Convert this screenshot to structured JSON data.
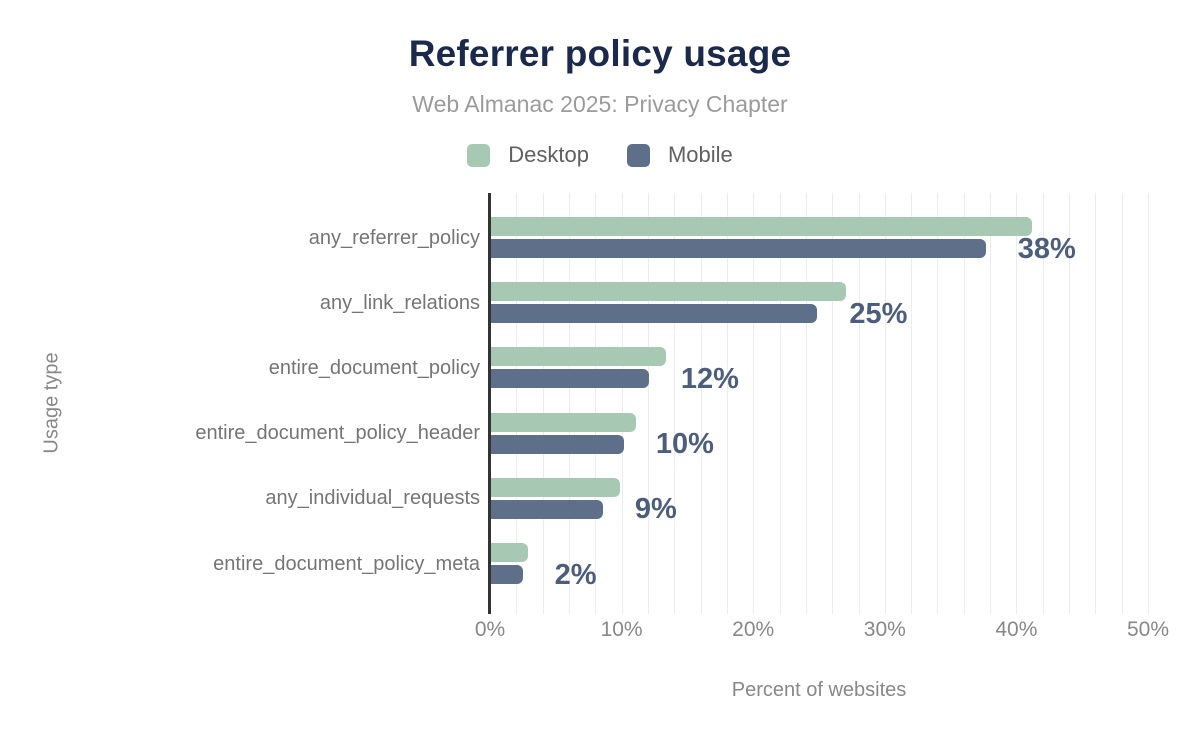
{
  "chart_data": {
    "type": "bar",
    "orientation": "horizontal",
    "title": "Referrer policy usage",
    "subtitle": "Web Almanac 2025: Privacy Chapter",
    "xlabel": "Percent of websites",
    "ylabel": "Usage type",
    "categories": [
      "any_referrer_policy",
      "any_link_relations",
      "entire_document_policy",
      "entire_document_policy_header",
      "any_individual_requests",
      "entire_document_policy_meta"
    ],
    "series": [
      {
        "name": "Desktop",
        "color": "#a7c9b4",
        "values": [
          41.1,
          27.0,
          13.3,
          11.0,
          9.8,
          2.8
        ]
      },
      {
        "name": "Mobile",
        "color": "#5e7089",
        "values": [
          37.6,
          24.8,
          12.0,
          10.1,
          8.5,
          2.4
        ]
      }
    ],
    "value_labels": [
      "38%",
      "25%",
      "12%",
      "10%",
      "9%",
      "2%"
    ],
    "xlim": [
      0,
      51.5
    ],
    "xticks": [
      {
        "value": 0,
        "label": "0%"
      },
      {
        "value": 10,
        "label": "10%"
      },
      {
        "value": 20,
        "label": "20%"
      },
      {
        "value": 30,
        "label": "30%"
      },
      {
        "value": 40,
        "label": "40%"
      },
      {
        "value": 50,
        "label": "50%"
      }
    ],
    "grid": {
      "minor_step_pct": 2,
      "color": "#ececef"
    },
    "legend_position": "top-center",
    "colors": {
      "title": "#1b2a4a",
      "subtitle": "#9b9b9b",
      "value_label": "#4d5e7c",
      "axis_line": "#333333",
      "tick_text": "#888888",
      "category_text": "#757575"
    }
  }
}
